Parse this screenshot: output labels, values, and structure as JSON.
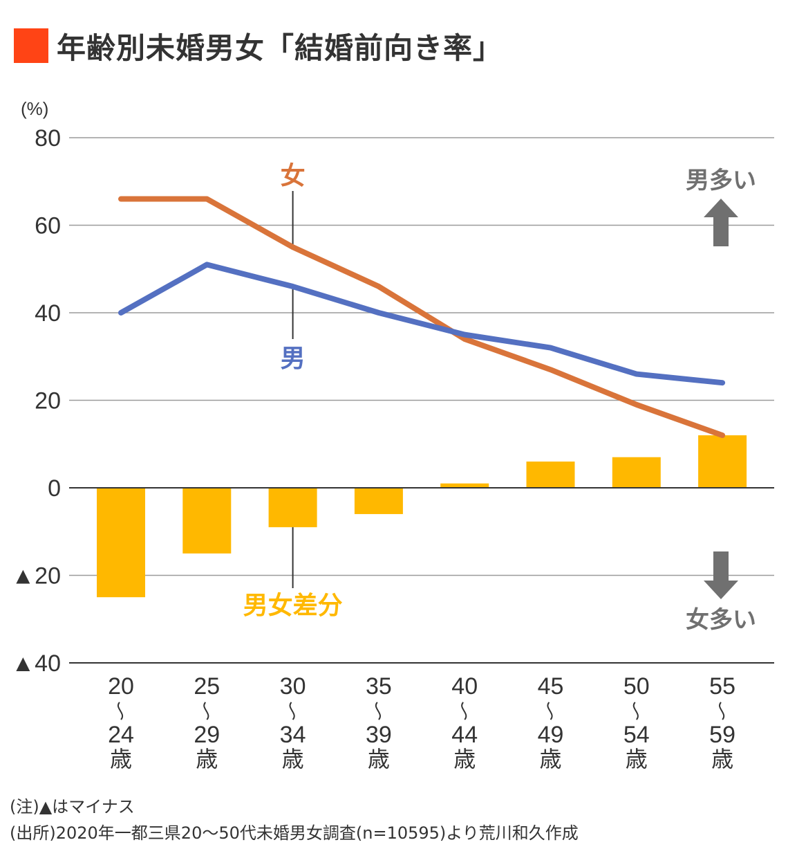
{
  "title": "年齢別未婚男女「結婚前向き率」",
  "colors": {
    "title_square": "#ff4415",
    "female_line": "#d9743a",
    "male_line": "#5470c1",
    "diff_bar": "#ffb800",
    "grid": "#9a9a9a",
    "axis_text": "#333333",
    "arrow": "#707070"
  },
  "chart_data": {
    "type": "line+bar",
    "title": "年齢別未婚男女「結婚前向き率」",
    "ylabel": "(%)",
    "xlabel": "",
    "ylim": [
      -40,
      80
    ],
    "yticks": [
      80,
      60,
      40,
      20,
      0,
      -20,
      -40
    ],
    "ytick_labels": [
      "80",
      "60",
      "40",
      "20",
      "0",
      "▲20",
      "▲40"
    ],
    "grid": true,
    "categories": [
      {
        "start": "20",
        "sep": "~",
        "end": "24",
        "unit": "歳"
      },
      {
        "start": "25",
        "sep": "~",
        "end": "29",
        "unit": "歳"
      },
      {
        "start": "30",
        "sep": "~",
        "end": "34",
        "unit": "歳"
      },
      {
        "start": "35",
        "sep": "~",
        "end": "39",
        "unit": "歳"
      },
      {
        "start": "40",
        "sep": "~",
        "end": "44",
        "unit": "歳"
      },
      {
        "start": "45",
        "sep": "~",
        "end": "49",
        "unit": "歳"
      },
      {
        "start": "50",
        "sep": "~",
        "end": "54",
        "unit": "歳"
      },
      {
        "start": "55",
        "sep": "~",
        "end": "59",
        "unit": "歳"
      }
    ],
    "series": [
      {
        "name": "女",
        "type": "line",
        "color": "#d9743a",
        "values": [
          66,
          66,
          55,
          46,
          34,
          27,
          19,
          12
        ]
      },
      {
        "name": "男",
        "type": "line",
        "color": "#5470c1",
        "values": [
          40,
          51,
          46,
          40,
          35,
          32,
          26,
          24
        ]
      },
      {
        "name": "男女差分",
        "type": "bar",
        "color": "#ffb800",
        "values": [
          -25,
          -15,
          -9,
          -6,
          1,
          6,
          7,
          12
        ]
      }
    ],
    "annotations": {
      "female_label": "女",
      "male_label": "男",
      "diff_label": "男女差分",
      "up_label": "男多い",
      "down_label": "女多い"
    }
  },
  "notes": {
    "note1": "(注)▲はマイナス",
    "note2": "(出所)2020年一都三県20〜50代未婚男女調査(n=10595)より荒川和久作成"
  }
}
